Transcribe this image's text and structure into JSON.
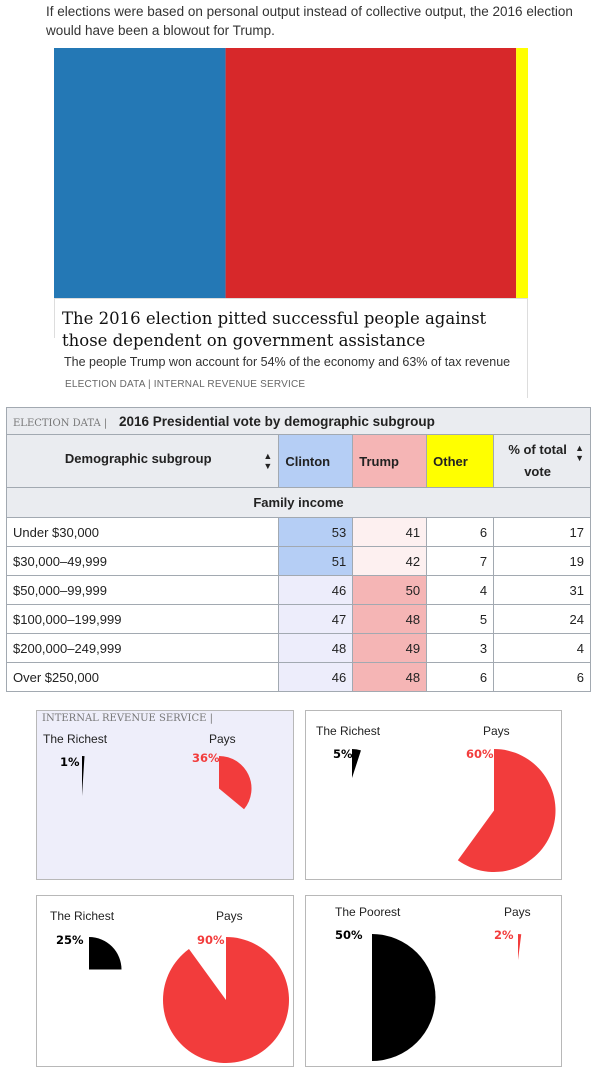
{
  "intro_text": "If elections were based on personal output instead of collective output, the 2016 election would have been a blowout for Trump.",
  "colors": {
    "clinton": "#2478b5",
    "trump": "#d7282a",
    "other": "#ffff00",
    "pie_black": "#000000",
    "pie_red": "#f23c3c"
  },
  "chart_data": [
    {
      "type": "bar",
      "orientation": "horizontal-stacked",
      "title": "The 2016 election pitted successful people against those dependent on government assistance",
      "subtitle": "The people Trump won account for 54% of the economy and 63% of tax revenue",
      "source": "ELECTION DATA | INTERNAL REVENUE SERVICE",
      "series": [
        {
          "name": "",
          "value": 36.2,
          "color": "#2478b5"
        },
        {
          "name": "",
          "value": 61.3,
          "color": "#d7282a"
        },
        {
          "name": "",
          "value": 2.5,
          "color": "#ffff00"
        }
      ]
    },
    {
      "type": "table",
      "source_tag": "ELECTION DATA |",
      "title": "2016 Presidential vote by demographic subgroup",
      "columns": [
        "Demographic subgroup",
        "Clinton",
        "Trump",
        "Other",
        "% of total vote"
      ],
      "section": "Family income",
      "rows": [
        {
          "label": "Under $30,000",
          "clinton": 53,
          "trump": 41,
          "other": 6,
          "pct": 17
        },
        {
          "label": "$30,000–49,999",
          "clinton": 51,
          "trump": 42,
          "other": 7,
          "pct": 19
        },
        {
          "label": "$50,000–99,999",
          "clinton": 46,
          "trump": 50,
          "other": 4,
          "pct": 31
        },
        {
          "label": "$100,000–199,999",
          "clinton": 47,
          "trump": 48,
          "other": 5,
          "pct": 24
        },
        {
          "label": "$200,000–249,999",
          "clinton": 48,
          "trump": 49,
          "other": 3,
          "pct": 4
        },
        {
          "label": "Over $250,000",
          "clinton": 46,
          "trump": 48,
          "other": 6,
          "pct": 6
        }
      ]
    },
    {
      "type": "pie",
      "source_tag": "INTERNAL REVENUE SERVICE |",
      "panels": [
        {
          "group_label": "The Richest",
          "group_pct": 1,
          "group_pct_label": "1%",
          "pays_label": "Pays",
          "pays_pct": 36,
          "pays_pct_label": "36%"
        },
        {
          "group_label": "The Richest",
          "group_pct": 5,
          "group_pct_label": "5%",
          "pays_label": "Pays",
          "pays_pct": 60,
          "pays_pct_label": "60%"
        },
        {
          "group_label": "The Richest",
          "group_pct": 25,
          "group_pct_label": "25%",
          "pays_label": "Pays",
          "pays_pct": 90,
          "pays_pct_label": "90%"
        },
        {
          "group_label": "The Poorest",
          "group_pct": 50,
          "group_pct_label": "50%",
          "pays_label": "Pays",
          "pays_pct": 2,
          "pays_pct_label": "2%"
        }
      ]
    }
  ]
}
